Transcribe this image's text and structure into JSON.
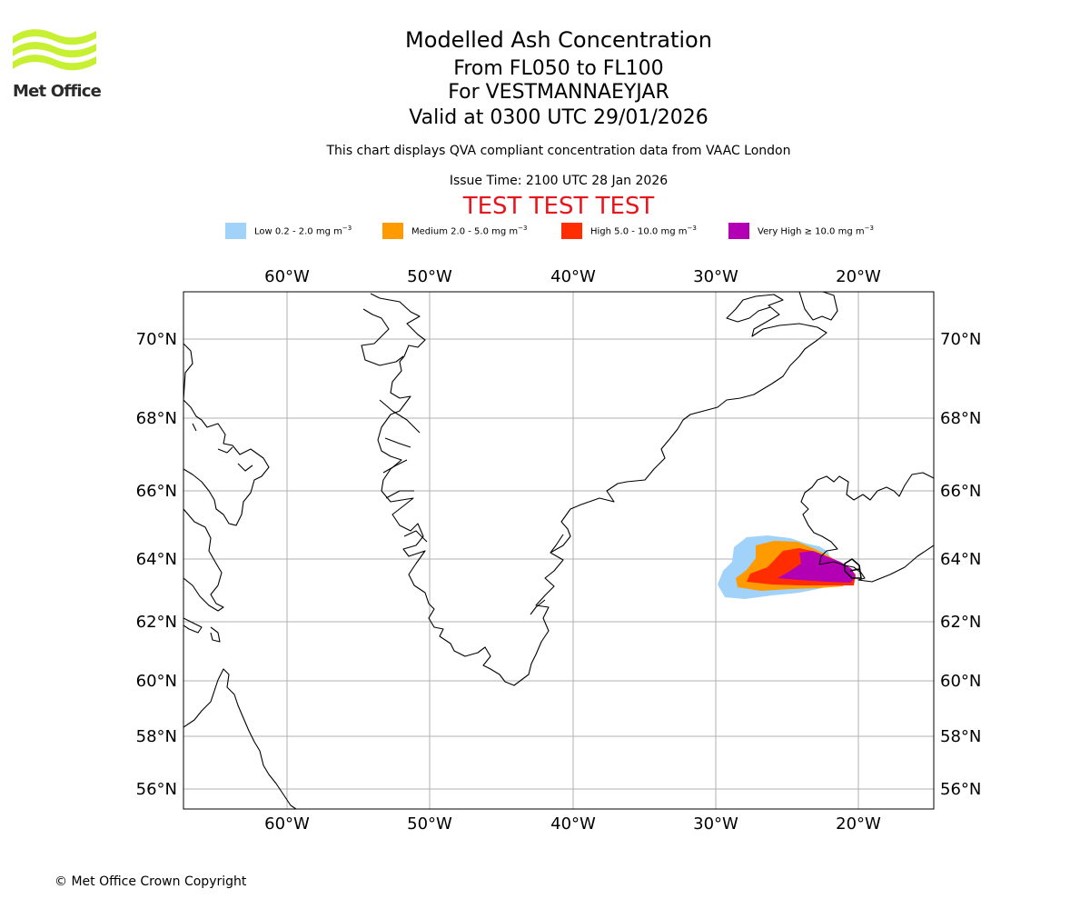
{
  "logo": {
    "text": "Met Office",
    "colors": {
      "waves": "#c8f032",
      "text": "#2b2b2b"
    }
  },
  "header": {
    "title": "Modelled Ash Concentration",
    "levels": "From FL050 to FL100",
    "volcano": "For VESTMANNAEYJAR",
    "valid": "Valid at 0300 UTC 29/01/2026",
    "subtitle": "This chart displays QVA compliant concentration data from VAAC London",
    "issue_time": "Issue Time: 2100 UTC 28 Jan 2026",
    "test_banner": "TEST TEST TEST"
  },
  "legend": [
    {
      "name": "Low",
      "text": "Low 0.2 - 2.0 mg m",
      "unit_exp": "−3",
      "color": "#a0d2fa"
    },
    {
      "name": "Medium",
      "text": "Medium 2.0 - 5.0 mg m",
      "unit_exp": "−3",
      "color": "#ff9a00"
    },
    {
      "name": "High",
      "text": "High 5.0 - 10.0 mg m",
      "unit_exp": "−3",
      "color": "#ff2d00"
    },
    {
      "name": "Very High",
      "text": "Very High ≥ 10.0 mg m",
      "unit_exp": "−3",
      "color": "#b400b4"
    }
  ],
  "map": {
    "lon_labels": [
      "60°W",
      "50°W",
      "40°W",
      "30°W",
      "20°W"
    ],
    "lat_labels": [
      "70°N",
      "68°N",
      "66°N",
      "64°N",
      "62°N",
      "60°N",
      "58°N",
      "56°N"
    ],
    "grid_color": "#b0b0b0",
    "coast_color": "#000000"
  },
  "footer": {
    "copyright": "© Met Office Crown Copyright"
  }
}
